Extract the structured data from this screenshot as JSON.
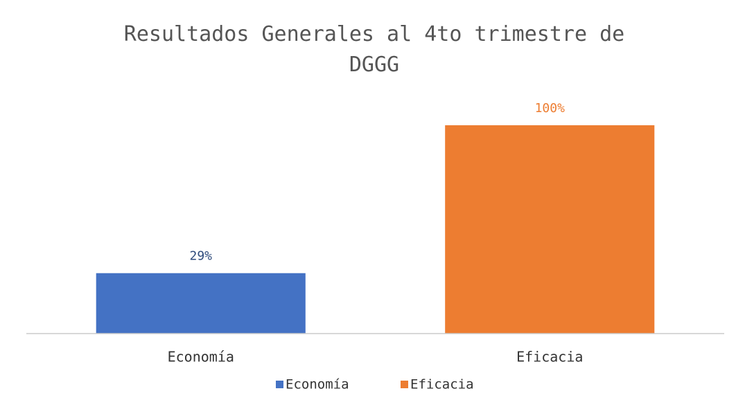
{
  "chart_data": {
    "type": "bar",
    "title": "Resultados Generales al 4to trimestre de DGGG",
    "categories": [
      "Economía",
      "Eficacia"
    ],
    "series": [
      {
        "name": "Economía",
        "color": "#4472c4",
        "values": [
          29,
          null
        ],
        "value_labels": [
          "29%",
          null
        ]
      },
      {
        "name": "Eficacia",
        "color": "#ed7d31",
        "values": [
          null,
          100
        ],
        "value_labels": [
          null,
          "100%"
        ]
      }
    ],
    "ylim": [
      0,
      100
    ],
    "legend": "bottom"
  }
}
